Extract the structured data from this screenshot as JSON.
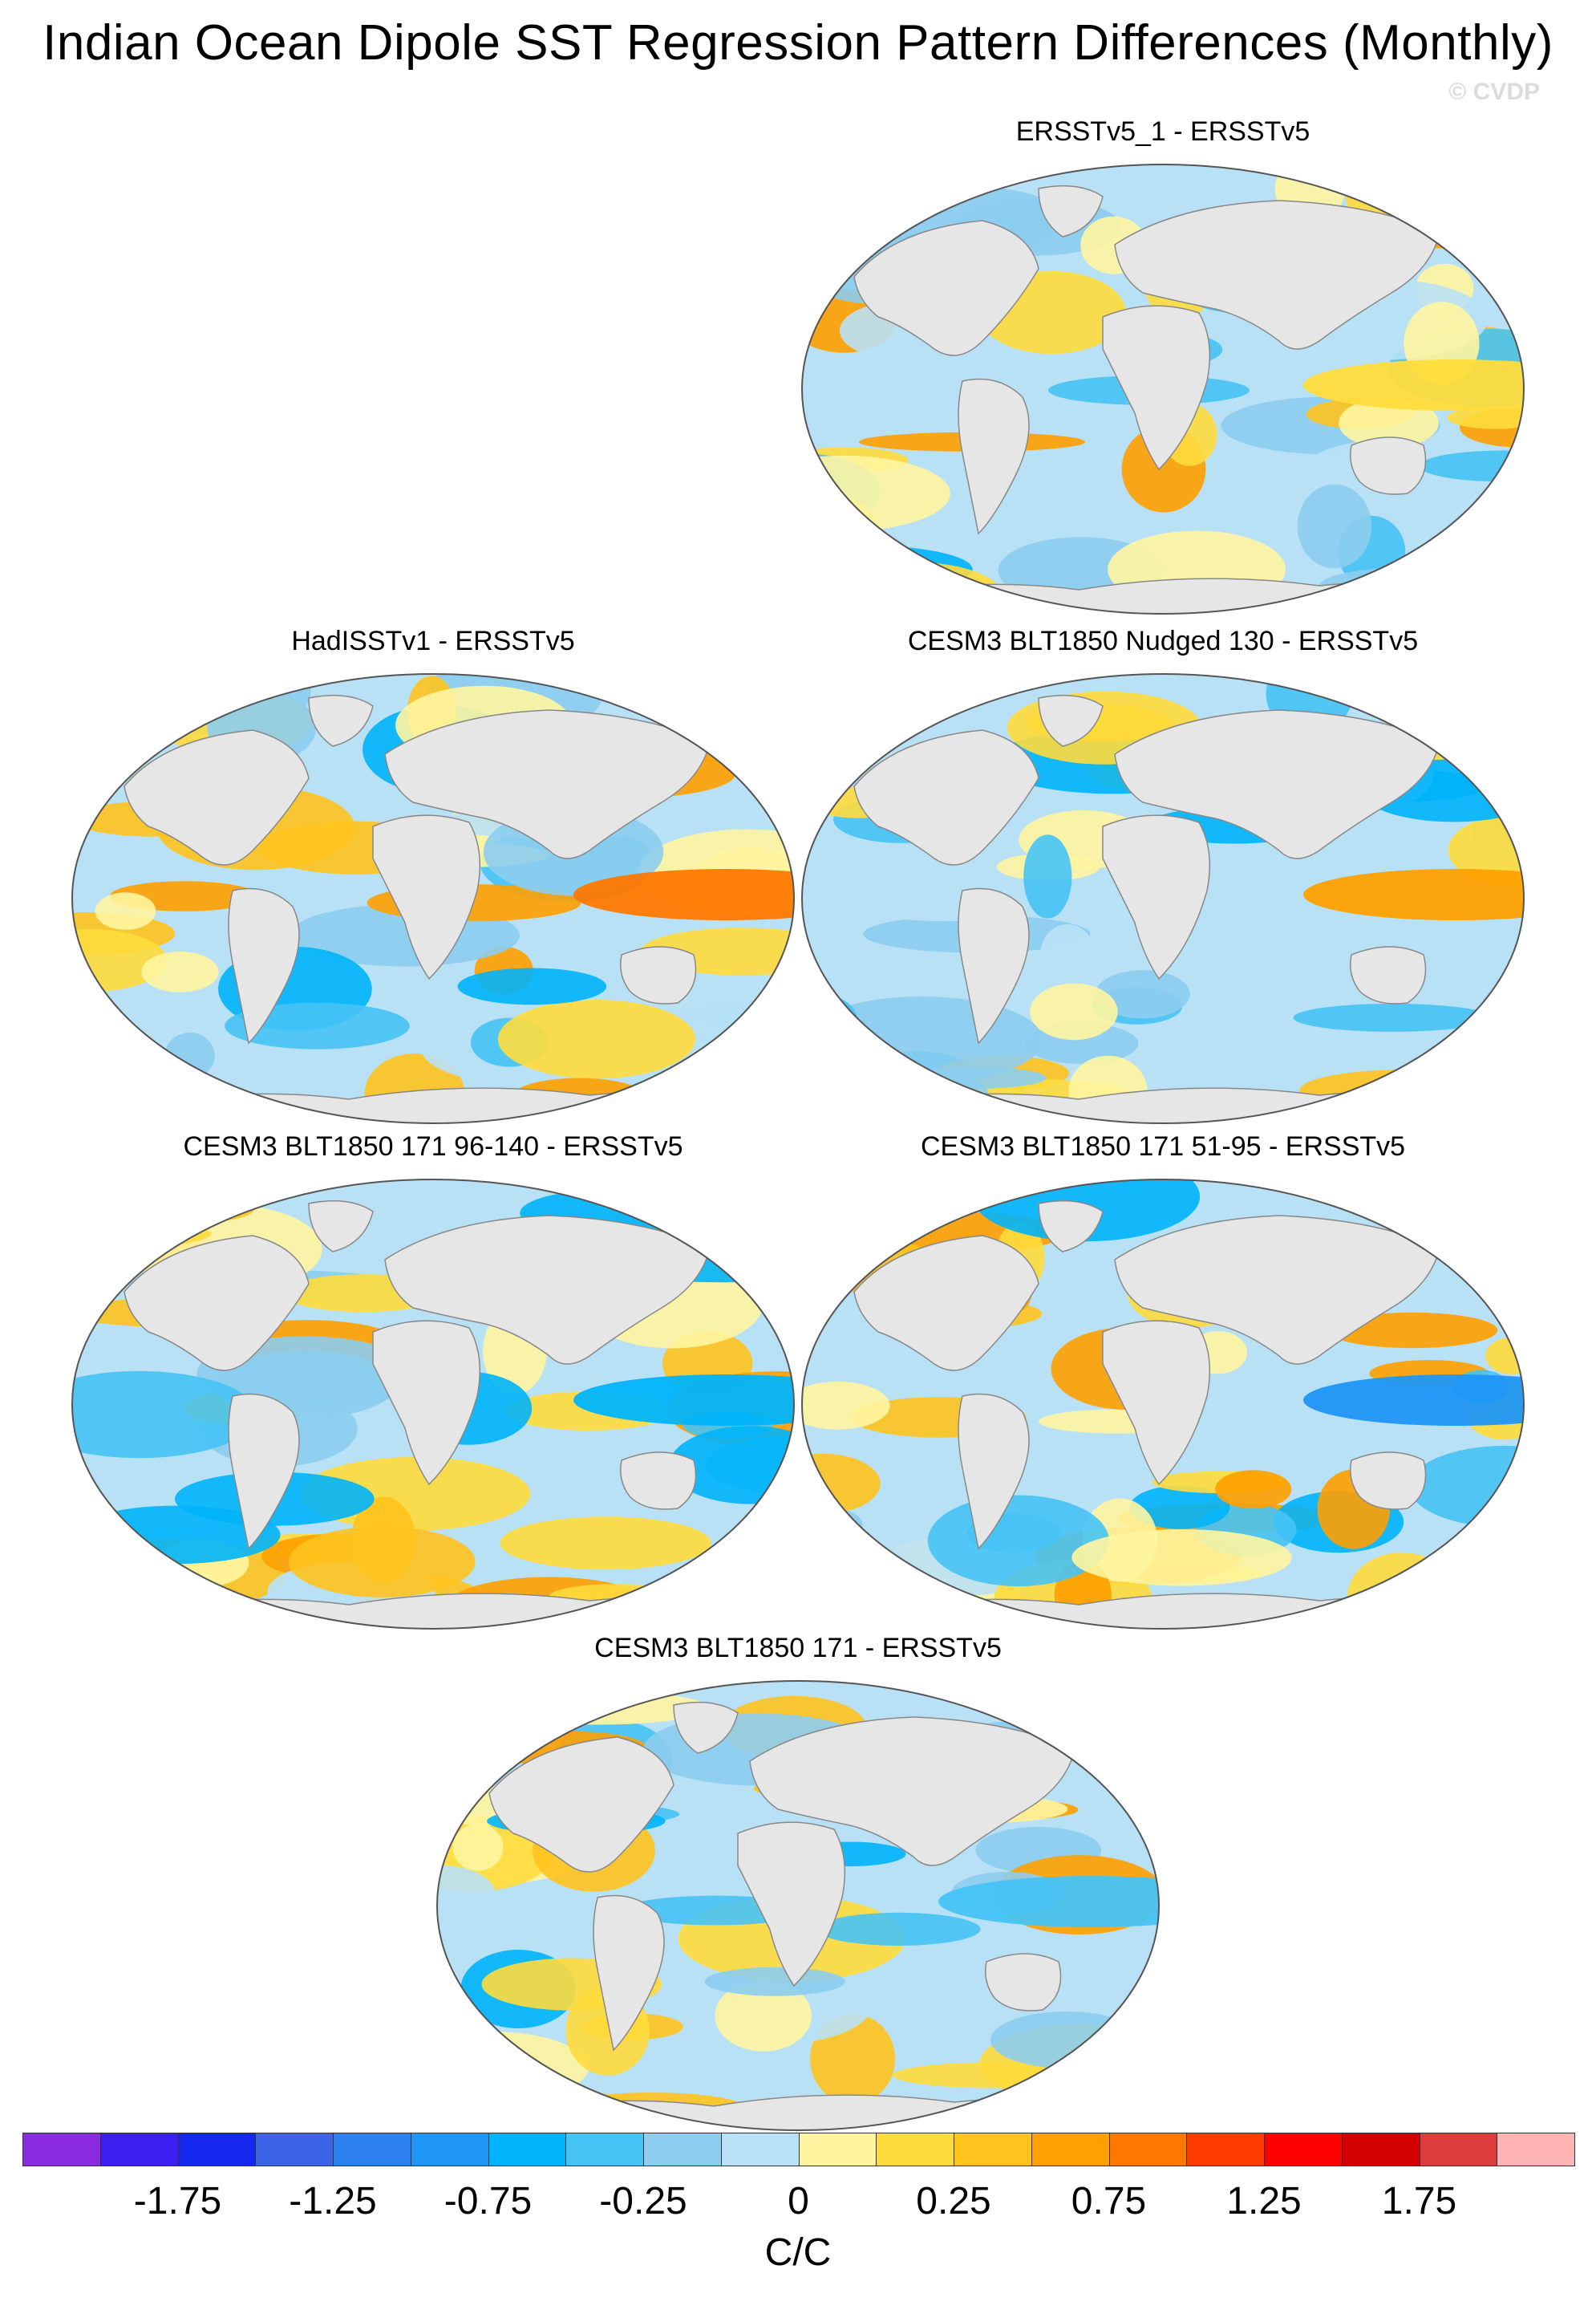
{
  "title": "Indian Ocean Dipole SST Regression Pattern Differences (Monthly)",
  "watermark": "© CVDP",
  "panels": [
    {
      "title": "ERSSTv5_1 - ERSSTv5",
      "slot": "top-right"
    },
    {
      "title": "HadISSTv1 - ERSSTv5",
      "slot": "row2-left"
    },
    {
      "title": "CESM3 BLT1850 Nudged 130 - ERSSTv5",
      "slot": "row2-right"
    },
    {
      "title": "CESM3 BLT1850 171 96-140 - ERSSTv5",
      "slot": "row3-left"
    },
    {
      "title": "CESM3 BLT1850 171 51-95 - ERSSTv5",
      "slot": "row3-right"
    },
    {
      "title": "CESM3 BLT1850 171 - ERSSTv5",
      "slot": "bottom-center"
    }
  ],
  "colorbar": {
    "colors": [
      "#8a2be2",
      "#3c1ef0",
      "#1428f0",
      "#3c64e6",
      "#2d82f0",
      "#1e96f5",
      "#00b4fa",
      "#46c3f5",
      "#8ccdf0",
      "#b9e1f5",
      "#fff5a0",
      "#ffdc3c",
      "#ffc31e",
      "#ffa000",
      "#ff7800",
      "#ff3c00",
      "#ff0000",
      "#d20000",
      "#dc3c3c",
      "#ffb4b4"
    ],
    "labels": [
      "-1.75",
      "-1.25",
      "-0.75",
      "-0.25",
      "0",
      "0.25",
      "0.75",
      "1.25",
      "1.75"
    ],
    "units": "C/C"
  }
}
